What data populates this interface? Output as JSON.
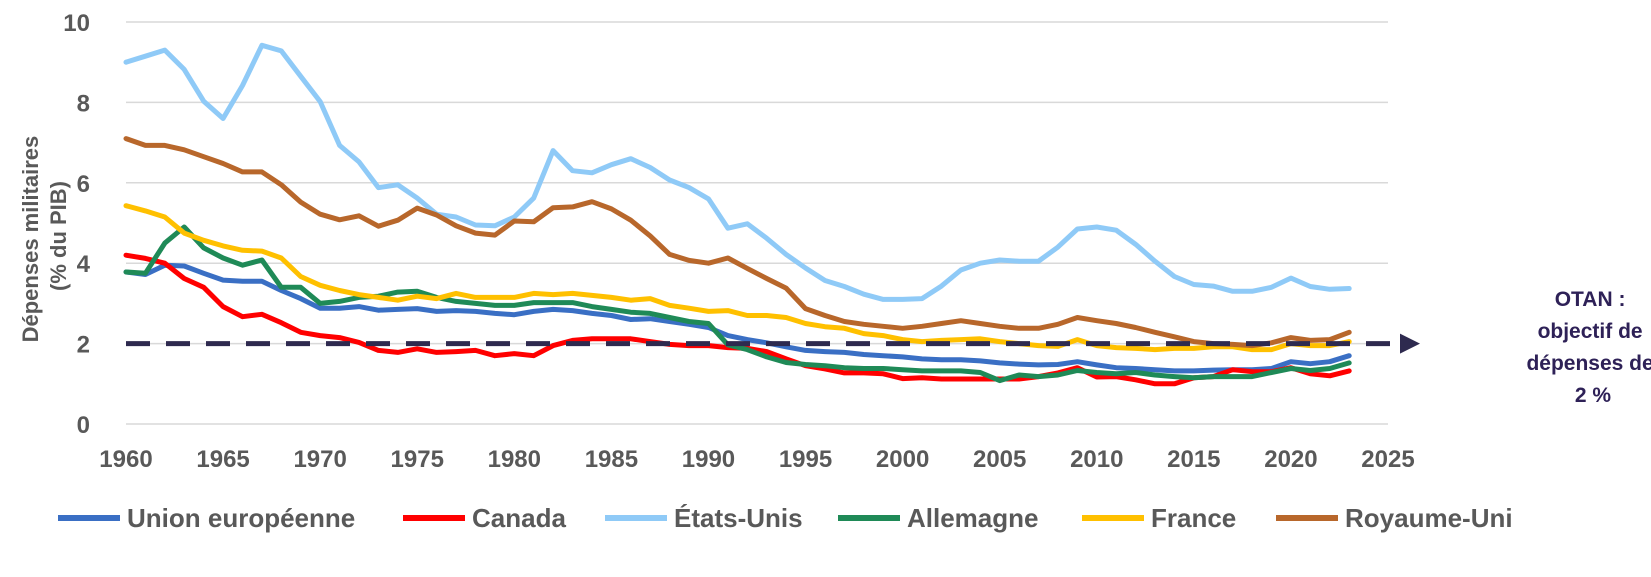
{
  "chart_data": {
    "type": "line",
    "title": "",
    "xlabel": "",
    "ylabel_lines": [
      "Dépenses militaires",
      "(% du PIB)"
    ],
    "xlim": [
      1960,
      2025
    ],
    "ylim": [
      0,
      10
    ],
    "x_ticks": [
      1960,
      1965,
      1970,
      1975,
      1980,
      1985,
      1990,
      1995,
      2000,
      2005,
      2010,
      2015,
      2020,
      2025
    ],
    "y_ticks": [
      0,
      2,
      4,
      6,
      8,
      10
    ],
    "grid": "horizontal",
    "legend_position": "bottom",
    "target": {
      "value": 2,
      "label_lines": [
        "OTAN :",
        "objectif de",
        "dépenses de",
        "2 %"
      ],
      "color": "#2e2a4f"
    },
    "x": [
      1960,
      1961,
      1962,
      1963,
      1964,
      1965,
      1966,
      1967,
      1968,
      1969,
      1970,
      1971,
      1972,
      1973,
      1974,
      1975,
      1976,
      1977,
      1978,
      1979,
      1980,
      1981,
      1982,
      1983,
      1984,
      1985,
      1986,
      1987,
      1988,
      1989,
      1990,
      1991,
      1992,
      1993,
      1994,
      1995,
      1996,
      1997,
      1998,
      1999,
      2000,
      2001,
      2002,
      2003,
      2004,
      2005,
      2006,
      2007,
      2008,
      2009,
      2010,
      2011,
      2012,
      2013,
      2014,
      2015,
      2016,
      2017,
      2018,
      2019,
      2020,
      2021,
      2022,
      2023
    ],
    "series": [
      {
        "name": "Union européenne",
        "color": "#3a6fc4",
        "values": [
          3.78,
          3.72,
          3.95,
          3.93,
          3.75,
          3.58,
          3.55,
          3.55,
          3.32,
          3.12,
          2.88,
          2.88,
          2.92,
          2.83,
          2.85,
          2.87,
          2.8,
          2.82,
          2.8,
          2.75,
          2.72,
          2.8,
          2.85,
          2.82,
          2.75,
          2.7,
          2.6,
          2.62,
          2.55,
          2.48,
          2.4,
          2.2,
          2.1,
          2.02,
          1.92,
          1.83,
          1.8,
          1.78,
          1.73,
          1.7,
          1.67,
          1.62,
          1.6,
          1.6,
          1.57,
          1.52,
          1.49,
          1.47,
          1.48,
          1.55,
          1.47,
          1.4,
          1.38,
          1.35,
          1.32,
          1.32,
          1.34,
          1.35,
          1.35,
          1.38,
          1.55,
          1.5,
          1.55,
          1.7
        ]
      },
      {
        "name": "Canada",
        "color": "#ff0000",
        "values": [
          4.2,
          4.12,
          4.0,
          3.62,
          3.4,
          2.92,
          2.67,
          2.73,
          2.52,
          2.28,
          2.2,
          2.15,
          2.03,
          1.83,
          1.78,
          1.87,
          1.78,
          1.8,
          1.83,
          1.7,
          1.75,
          1.7,
          1.95,
          2.08,
          2.12,
          2.12,
          2.12,
          2.05,
          1.98,
          1.95,
          1.95,
          1.9,
          1.88,
          1.8,
          1.62,
          1.45,
          1.37,
          1.27,
          1.27,
          1.25,
          1.13,
          1.15,
          1.12,
          1.12,
          1.12,
          1.12,
          1.12,
          1.18,
          1.27,
          1.4,
          1.17,
          1.18,
          1.1,
          1.0,
          1.0,
          1.15,
          1.18,
          1.35,
          1.3,
          1.3,
          1.4,
          1.25,
          1.2,
          1.32
        ]
      },
      {
        "name": "États-Unis",
        "color": "#8fcaf7",
        "values": [
          9.0,
          9.15,
          9.3,
          8.82,
          8.03,
          7.6,
          8.42,
          9.42,
          9.28,
          8.65,
          8.02,
          6.93,
          6.52,
          5.88,
          5.95,
          5.62,
          5.22,
          5.15,
          4.95,
          4.93,
          5.15,
          5.62,
          6.8,
          6.3,
          6.25,
          6.45,
          6.6,
          6.38,
          6.07,
          5.88,
          5.6,
          4.87,
          4.98,
          4.62,
          4.22,
          3.88,
          3.57,
          3.42,
          3.23,
          3.1,
          3.1,
          3.12,
          3.43,
          3.83,
          4.0,
          4.08,
          4.05,
          4.05,
          4.4,
          4.85,
          4.9,
          4.82,
          4.47,
          4.05,
          3.67,
          3.47,
          3.43,
          3.3,
          3.3,
          3.4,
          3.63,
          3.42,
          3.35,
          3.37
        ]
      },
      {
        "name": "Allemagne",
        "color": "#1f8a57",
        "values": [
          3.78,
          3.75,
          4.5,
          4.9,
          4.38,
          4.13,
          3.95,
          4.08,
          3.4,
          3.4,
          3.0,
          3.05,
          3.15,
          3.18,
          3.28,
          3.3,
          3.15,
          3.05,
          3.0,
          2.95,
          2.95,
          3.02,
          3.02,
          3.02,
          2.92,
          2.85,
          2.78,
          2.75,
          2.65,
          2.55,
          2.5,
          1.97,
          1.85,
          1.67,
          1.53,
          1.48,
          1.45,
          1.4,
          1.38,
          1.38,
          1.35,
          1.32,
          1.32,
          1.32,
          1.28,
          1.08,
          1.22,
          1.18,
          1.22,
          1.33,
          1.28,
          1.25,
          1.28,
          1.22,
          1.18,
          1.15,
          1.18,
          1.18,
          1.18,
          1.28,
          1.38,
          1.33,
          1.38,
          1.52
        ]
      },
      {
        "name": "France",
        "color": "#ffc000",
        "values": [
          5.43,
          5.3,
          5.15,
          4.75,
          4.57,
          4.43,
          4.32,
          4.3,
          4.13,
          3.67,
          3.45,
          3.32,
          3.22,
          3.15,
          3.08,
          3.18,
          3.12,
          3.25,
          3.15,
          3.15,
          3.15,
          3.25,
          3.22,
          3.25,
          3.2,
          3.15,
          3.08,
          3.12,
          2.95,
          2.88,
          2.8,
          2.82,
          2.7,
          2.7,
          2.65,
          2.5,
          2.42,
          2.38,
          2.25,
          2.2,
          2.1,
          2.05,
          2.08,
          2.1,
          2.12,
          2.05,
          2.0,
          1.95,
          1.93,
          2.1,
          1.95,
          1.9,
          1.88,
          1.85,
          1.88,
          1.88,
          1.92,
          1.92,
          1.85,
          1.85,
          2.0,
          1.95,
          1.95,
          2.05
        ]
      },
      {
        "name": "Royaume-Uni",
        "color": "#b8672b",
        "values": [
          7.1,
          6.93,
          6.93,
          6.82,
          6.65,
          6.48,
          6.27,
          6.27,
          5.95,
          5.52,
          5.22,
          5.08,
          5.18,
          4.92,
          5.07,
          5.37,
          5.2,
          4.93,
          4.75,
          4.7,
          5.05,
          5.03,
          5.38,
          5.4,
          5.53,
          5.35,
          5.07,
          4.68,
          4.22,
          4.07,
          4.0,
          4.13,
          3.87,
          3.62,
          3.38,
          2.87,
          2.7,
          2.55,
          2.48,
          2.43,
          2.38,
          2.43,
          2.5,
          2.57,
          2.5,
          2.43,
          2.38,
          2.38,
          2.48,
          2.65,
          2.57,
          2.5,
          2.4,
          2.28,
          2.17,
          2.05,
          2.0,
          1.98,
          1.95,
          2.02,
          2.15,
          2.08,
          2.1,
          2.28
        ]
      }
    ]
  }
}
